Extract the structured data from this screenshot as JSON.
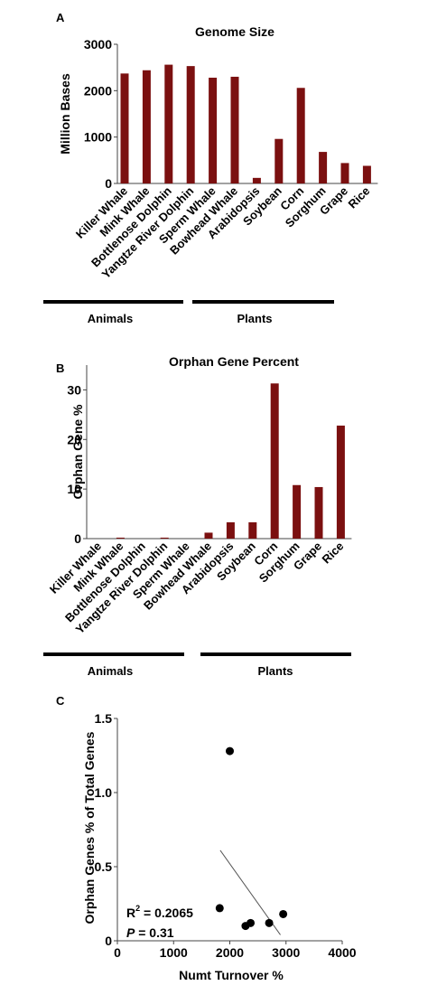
{
  "chart_data": [
    {
      "panel": "A",
      "type": "bar",
      "title": "Genome Size",
      "ylabel": "Million Bases",
      "xlabel": "",
      "ylim": [
        0,
        3000
      ],
      "yticks": [
        0,
        1000,
        2000,
        3000
      ],
      "categories": [
        "Killer Whale",
        "Mink Whale",
        "Bottlenose Dolphin",
        "Yangtze River Dolphin",
        "Sperm Whale",
        "Bowhead Whale",
        "Arabidopsis",
        "Soybean",
        "Corn",
        "Sorghum",
        "Grape",
        "Rice"
      ],
      "values": [
        2370,
        2440,
        2560,
        2530,
        2280,
        2300,
        120,
        960,
        2060,
        680,
        440,
        380
      ],
      "bar_color": "#7b1010",
      "groups": [
        {
          "label": "Animals",
          "from": 0,
          "to": 5
        },
        {
          "label": "Plants",
          "from": 6,
          "to": 11
        }
      ],
      "grid": false
    },
    {
      "panel": "B",
      "type": "bar",
      "title": "Orphan Gene Percent",
      "ylabel": "Orphan Gene %",
      "xlabel": "",
      "ylim": [
        0,
        35
      ],
      "yticks": [
        0,
        10,
        20,
        30
      ],
      "categories": [
        "Killer Whale",
        "Mink Whale",
        "Bottlenose Dolphin",
        "Yangtze River Dolphin",
        "Sperm Whale",
        "Bowhead Whale",
        "Arabidopsis",
        "Soybean",
        "Corn",
        "Sorghum",
        "Grape",
        "Rice"
      ],
      "values": [
        0,
        0.2,
        0,
        0.2,
        0,
        1.2,
        3.3,
        3.3,
        31.3,
        10.8,
        10.4,
        22.8
      ],
      "bar_color": "#7b1010",
      "groups": [
        {
          "label": "Animals",
          "from": 0,
          "to": 5
        },
        {
          "label": "Plants",
          "from": 6,
          "to": 11
        }
      ],
      "grid": false
    },
    {
      "panel": "C",
      "type": "scatter",
      "title": "",
      "xlabel": "Numt Turnover %",
      "ylabel": "Orphan Genes % of Total Genes",
      "xlim": [
        0,
        4000
      ],
      "ylim": [
        0,
        1.5
      ],
      "xticks": [
        0,
        1000,
        2000,
        3000,
        4000
      ],
      "yticks": [
        "0",
        "0.5",
        "1.0",
        "1.5"
      ],
      "points": [
        {
          "x": 2000,
          "y": 1.28
        },
        {
          "x": 1820,
          "y": 0.22
        },
        {
          "x": 2280,
          "y": 0.1
        },
        {
          "x": 2370,
          "y": 0.12
        },
        {
          "x": 2700,
          "y": 0.12
        },
        {
          "x": 2950,
          "y": 0.18
        }
      ],
      "trendline": {
        "x": [
          1830,
          2900
        ],
        "y": [
          0.61,
          0.04
        ]
      },
      "r2_label": "R",
      "r2_exp": "2",
      "r2_value": " = 0.2065",
      "p_label": "P",
      "p_value": " = 0.31",
      "grid": false
    }
  ]
}
